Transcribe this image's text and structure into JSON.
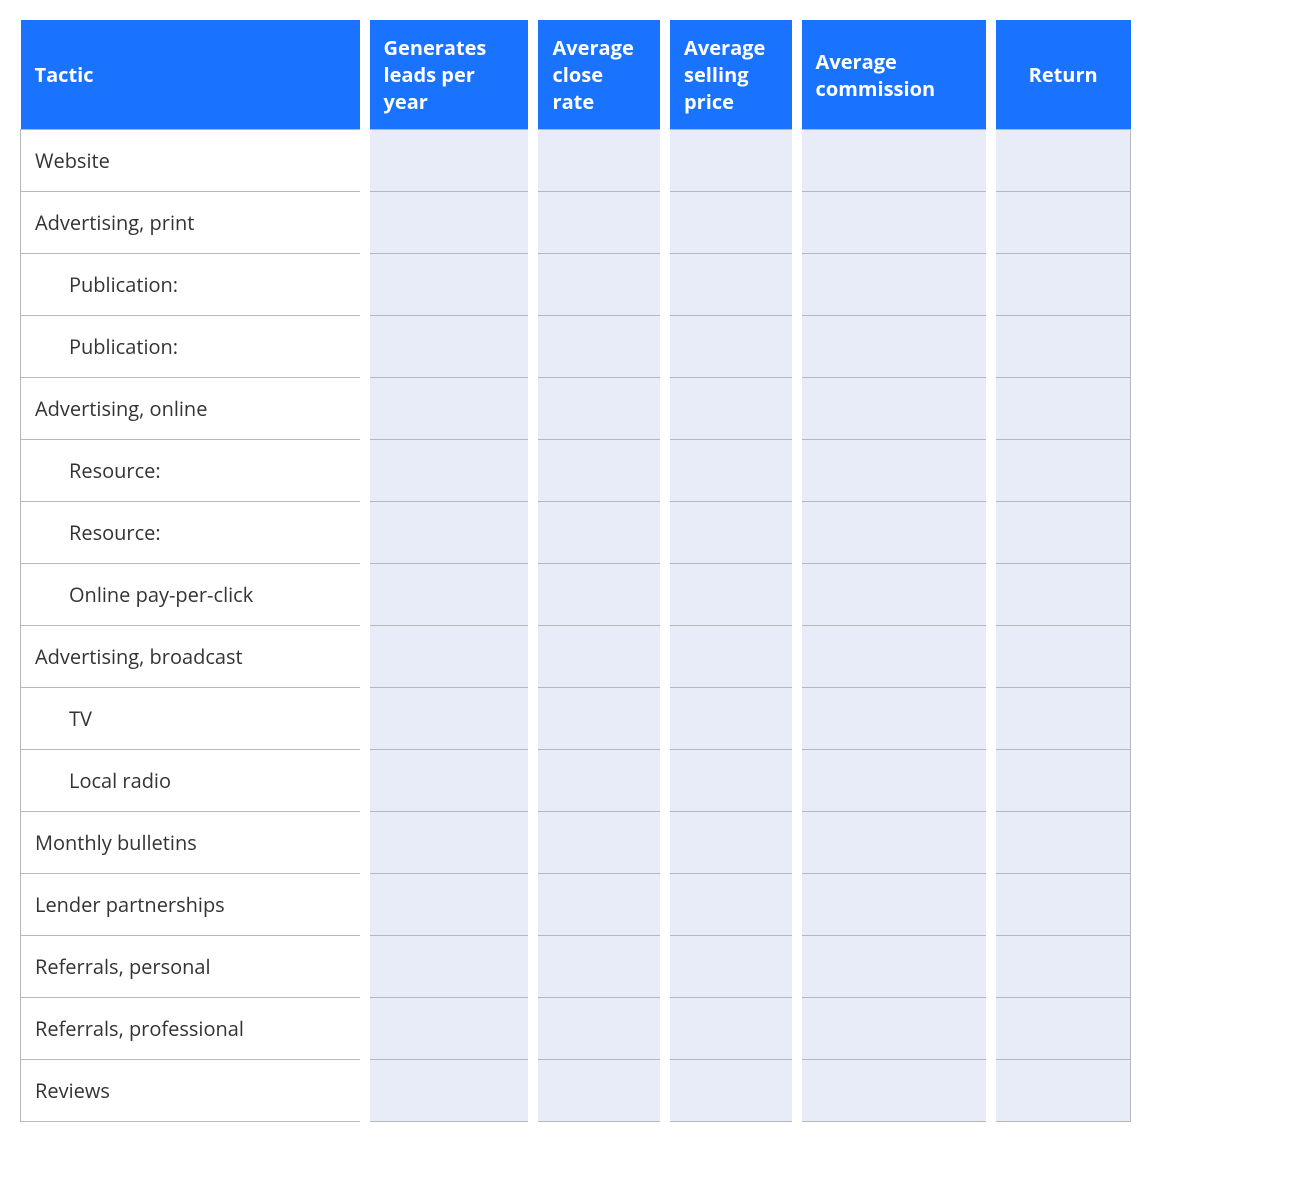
{
  "table": {
    "header_bg": "#1a73ff",
    "header_fg": "#ffffff",
    "cell_bg": "#e8ecf8",
    "label_bg": "#ffffff",
    "border_color": "#b6b8bb",
    "font_size_header": 20,
    "font_size_body": 20,
    "columns": [
      {
        "key": "tactic",
        "label": "Tactic",
        "align": "left"
      },
      {
        "key": "leads",
        "label": "Generates leads per year",
        "align": "left"
      },
      {
        "key": "close",
        "label": "Average close rate",
        "align": "left"
      },
      {
        "key": "price",
        "label": "Average selling price",
        "align": "left"
      },
      {
        "key": "comm",
        "label": "Average commission",
        "align": "left"
      },
      {
        "key": "return",
        "label": "Return",
        "align": "center"
      }
    ],
    "rows": [
      {
        "tactic": "Website",
        "indent": 0,
        "leads": "",
        "close": "",
        "price": "",
        "comm": "",
        "return": ""
      },
      {
        "tactic": "Advertising, print",
        "indent": 0,
        "leads": "",
        "close": "",
        "price": "",
        "comm": "",
        "return": ""
      },
      {
        "tactic": "Publication:",
        "indent": 1,
        "leads": "",
        "close": "",
        "price": "",
        "comm": "",
        "return": ""
      },
      {
        "tactic": "Publication:",
        "indent": 1,
        "leads": "",
        "close": "",
        "price": "",
        "comm": "",
        "return": ""
      },
      {
        "tactic": "Advertising, online",
        "indent": 0,
        "leads": "",
        "close": "",
        "price": "",
        "comm": "",
        "return": ""
      },
      {
        "tactic": "Resource:",
        "indent": 1,
        "leads": "",
        "close": "",
        "price": "",
        "comm": "",
        "return": ""
      },
      {
        "tactic": "Resource:",
        "indent": 1,
        "leads": "",
        "close": "",
        "price": "",
        "comm": "",
        "return": ""
      },
      {
        "tactic": "Online pay-per-click",
        "indent": 1,
        "leads": "",
        "close": "",
        "price": "",
        "comm": "",
        "return": ""
      },
      {
        "tactic": "Advertising, broadcast",
        "indent": 0,
        "leads": "",
        "close": "",
        "price": "",
        "comm": "",
        "return": ""
      },
      {
        "tactic": "TV",
        "indent": 1,
        "leads": "",
        "close": "",
        "price": "",
        "comm": "",
        "return": ""
      },
      {
        "tactic": "Local radio",
        "indent": 1,
        "leads": "",
        "close": "",
        "price": "",
        "comm": "",
        "return": ""
      },
      {
        "tactic": "Monthly bulletins",
        "indent": 0,
        "leads": "",
        "close": "",
        "price": "",
        "comm": "",
        "return": ""
      },
      {
        "tactic": "Lender partnerships",
        "indent": 0,
        "leads": "",
        "close": "",
        "price": "",
        "comm": "",
        "return": ""
      },
      {
        "tactic": "Referrals, personal",
        "indent": 0,
        "leads": "",
        "close": "",
        "price": "",
        "comm": "",
        "return": ""
      },
      {
        "tactic": "Referrals, professional",
        "indent": 0,
        "leads": "",
        "close": "",
        "price": "",
        "comm": "",
        "return": ""
      },
      {
        "tactic": "Reviews",
        "indent": 0,
        "leads": "",
        "close": "",
        "price": "",
        "comm": "",
        "return": ""
      }
    ]
  }
}
